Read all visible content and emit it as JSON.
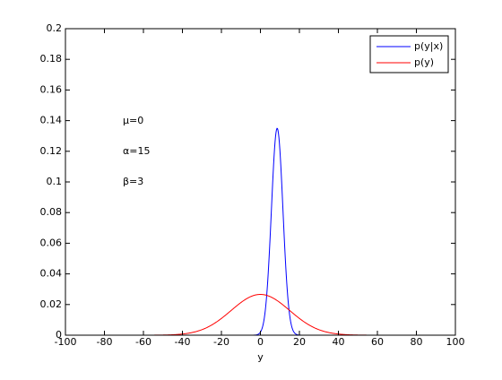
{
  "chart_data": {
    "type": "line",
    "title": "",
    "xlabel": "y",
    "ylabel": "",
    "xlim": [
      -100,
      100
    ],
    "ylim": [
      0,
      0.2
    ],
    "x_ticks": [
      -100,
      -80,
      -60,
      -40,
      -20,
      0,
      20,
      40,
      60,
      80,
      100
    ],
    "y_ticks": [
      0,
      0.02,
      0.04,
      0.06,
      0.08,
      0.1,
      0.12,
      0.14,
      0.16,
      0.18,
      0.2
    ],
    "grid": false,
    "legend_position": "top-right",
    "series": [
      {
        "name": "p(y|x)",
        "color": "#0000ff",
        "distribution": "normal",
        "mean": 8.6,
        "std": 2.96,
        "peak": 0.135
      },
      {
        "name": "p(y)",
        "color": "#ff0000",
        "distribution": "normal",
        "mean": 0,
        "std": 15,
        "peak": 0.0266
      }
    ],
    "annotations": [
      "μ=0",
      "α=15",
      "β=3"
    ]
  }
}
